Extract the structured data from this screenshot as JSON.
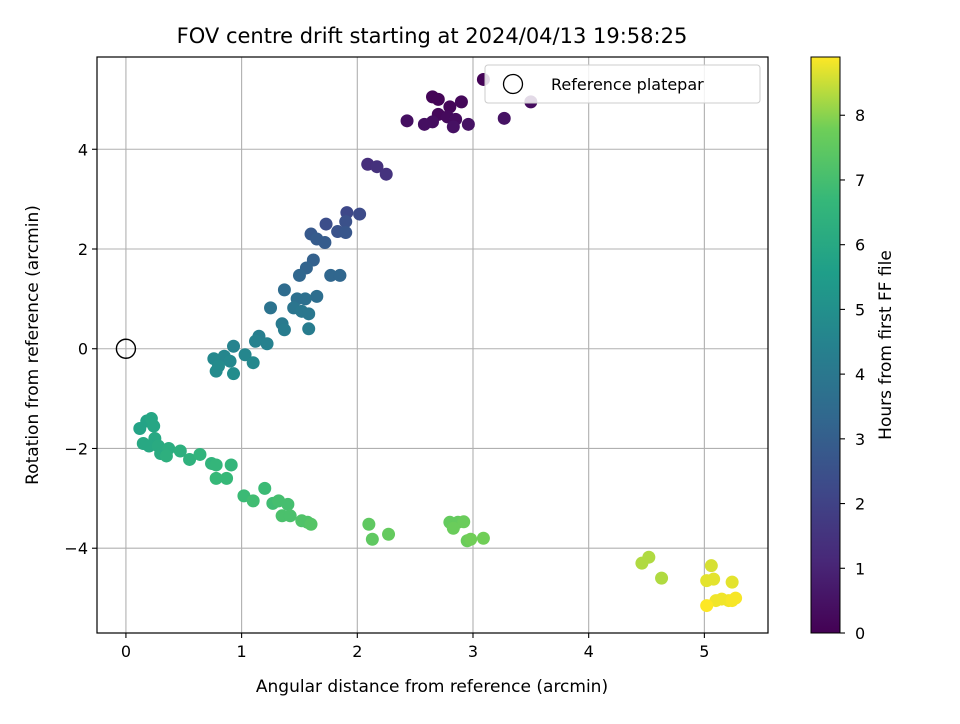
{
  "chart_data": {
    "type": "scatter",
    "title": "FOV centre drift starting at 2024/04/13 19:58:25",
    "xlabel": "Angular distance from reference (arcmin)",
    "ylabel": "Rotation from reference (arcmin)",
    "xlim": [
      -0.25,
      5.55
    ],
    "ylim": [
      -5.7,
      5.85
    ],
    "xticks": [
      0,
      1,
      2,
      3,
      4,
      5
    ],
    "yticks": [
      -4,
      -2,
      0,
      2,
      4
    ],
    "grid": true,
    "legend": {
      "placement": "top-right",
      "entries": [
        "Reference platepar"
      ]
    },
    "reference_point": {
      "x": 0,
      "y": 0
    },
    "colorbar": {
      "label": "Hours from first FF file",
      "colormap": "viridis",
      "range": [
        0,
        8.9
      ],
      "ticks": [
        0,
        1,
        2,
        3,
        4,
        5,
        6,
        7,
        8
      ]
    },
    "points": [
      {
        "x": 3.09,
        "y": 5.4,
        "c": 0.05
      },
      {
        "x": 2.65,
        "y": 5.05,
        "c": 0.1
      },
      {
        "x": 2.7,
        "y": 5.0,
        "c": 0.1
      },
      {
        "x": 2.8,
        "y": 4.85,
        "c": 0.15
      },
      {
        "x": 2.9,
        "y": 4.95,
        "c": 0.2
      },
      {
        "x": 3.5,
        "y": 4.95,
        "c": 0.3
      },
      {
        "x": 2.7,
        "y": 4.7,
        "c": 0.2
      },
      {
        "x": 2.78,
        "y": 4.65,
        "c": 0.25
      },
      {
        "x": 2.85,
        "y": 4.6,
        "c": 0.3
      },
      {
        "x": 2.65,
        "y": 4.55,
        "c": 0.35
      },
      {
        "x": 2.43,
        "y": 4.57,
        "c": 0.4
      },
      {
        "x": 2.58,
        "y": 4.5,
        "c": 0.4
      },
      {
        "x": 2.83,
        "y": 4.45,
        "c": 0.45
      },
      {
        "x": 2.96,
        "y": 4.5,
        "c": 0.5
      },
      {
        "x": 3.27,
        "y": 4.62,
        "c": 0.5
      },
      {
        "x": 2.09,
        "y": 3.7,
        "c": 1.3
      },
      {
        "x": 2.17,
        "y": 3.65,
        "c": 1.4
      },
      {
        "x": 2.25,
        "y": 3.5,
        "c": 1.5
      },
      {
        "x": 1.91,
        "y": 2.73,
        "c": 2.2
      },
      {
        "x": 2.02,
        "y": 2.7,
        "c": 2.3
      },
      {
        "x": 1.73,
        "y": 2.5,
        "c": 2.4
      },
      {
        "x": 1.9,
        "y": 2.55,
        "c": 2.5
      },
      {
        "x": 1.83,
        "y": 2.35,
        "c": 2.6
      },
      {
        "x": 1.9,
        "y": 2.33,
        "c": 2.7
      },
      {
        "x": 1.6,
        "y": 2.3,
        "c": 2.8
      },
      {
        "x": 1.65,
        "y": 2.2,
        "c": 2.9
      },
      {
        "x": 1.72,
        "y": 2.13,
        "c": 2.9
      },
      {
        "x": 1.62,
        "y": 1.78,
        "c": 3.1
      },
      {
        "x": 1.56,
        "y": 1.62,
        "c": 3.2
      },
      {
        "x": 1.5,
        "y": 1.47,
        "c": 3.3
      },
      {
        "x": 1.77,
        "y": 1.47,
        "c": 3.3
      },
      {
        "x": 1.85,
        "y": 1.47,
        "c": 3.3
      },
      {
        "x": 1.37,
        "y": 1.18,
        "c": 3.5
      },
      {
        "x": 1.65,
        "y": 1.05,
        "c": 3.6
      },
      {
        "x": 1.48,
        "y": 1.0,
        "c": 3.7
      },
      {
        "x": 1.55,
        "y": 1.0,
        "c": 3.7
      },
      {
        "x": 1.25,
        "y": 0.82,
        "c": 3.8
      },
      {
        "x": 1.45,
        "y": 0.82,
        "c": 3.9
      },
      {
        "x": 1.52,
        "y": 0.75,
        "c": 4.0
      },
      {
        "x": 1.58,
        "y": 0.7,
        "c": 4.0
      },
      {
        "x": 1.35,
        "y": 0.5,
        "c": 4.1
      },
      {
        "x": 1.58,
        "y": 0.4,
        "c": 4.2
      },
      {
        "x": 1.37,
        "y": 0.38,
        "c": 4.2
      },
      {
        "x": 1.15,
        "y": 0.25,
        "c": 4.3
      },
      {
        "x": 1.12,
        "y": 0.15,
        "c": 4.4
      },
      {
        "x": 1.22,
        "y": 0.1,
        "c": 4.4
      },
      {
        "x": 0.93,
        "y": 0.05,
        "c": 4.5
      },
      {
        "x": 1.03,
        "y": -0.12,
        "c": 4.6
      },
      {
        "x": 0.85,
        "y": -0.15,
        "c": 4.6
      },
      {
        "x": 0.76,
        "y": -0.2,
        "c": 4.7
      },
      {
        "x": 0.9,
        "y": -0.25,
        "c": 4.7
      },
      {
        "x": 1.1,
        "y": -0.28,
        "c": 4.7
      },
      {
        "x": 0.8,
        "y": -0.35,
        "c": 4.8
      },
      {
        "x": 0.78,
        "y": -0.45,
        "c": 4.8
      },
      {
        "x": 0.93,
        "y": -0.5,
        "c": 4.9
      },
      {
        "x": 0.12,
        "y": -1.6,
        "c": 5.8
      },
      {
        "x": 0.18,
        "y": -1.45,
        "c": 5.8
      },
      {
        "x": 0.22,
        "y": -1.4,
        "c": 5.9
      },
      {
        "x": 0.24,
        "y": -1.55,
        "c": 5.9
      },
      {
        "x": 0.25,
        "y": -1.8,
        "c": 6.0
      },
      {
        "x": 0.15,
        "y": -1.9,
        "c": 6.0
      },
      {
        "x": 0.2,
        "y": -1.95,
        "c": 6.0
      },
      {
        "x": 0.28,
        "y": -1.95,
        "c": 6.1
      },
      {
        "x": 0.3,
        "y": -2.1,
        "c": 6.1
      },
      {
        "x": 0.37,
        "y": -2.0,
        "c": 6.2
      },
      {
        "x": 0.47,
        "y": -2.05,
        "c": 6.3
      },
      {
        "x": 0.35,
        "y": -2.15,
        "c": 6.3
      },
      {
        "x": 0.55,
        "y": -2.22,
        "c": 6.4
      },
      {
        "x": 0.64,
        "y": -2.12,
        "c": 6.5
      },
      {
        "x": 0.74,
        "y": -2.3,
        "c": 6.5
      },
      {
        "x": 0.78,
        "y": -2.33,
        "c": 6.6
      },
      {
        "x": 0.91,
        "y": -2.33,
        "c": 6.6
      },
      {
        "x": 0.78,
        "y": -2.6,
        "c": 6.7
      },
      {
        "x": 0.87,
        "y": -2.6,
        "c": 6.7
      },
      {
        "x": 1.2,
        "y": -2.8,
        "c": 6.8
      },
      {
        "x": 1.02,
        "y": -2.95,
        "c": 6.8
      },
      {
        "x": 1.1,
        "y": -3.05,
        "c": 6.9
      },
      {
        "x": 1.27,
        "y": -3.1,
        "c": 6.9
      },
      {
        "x": 1.32,
        "y": -3.05,
        "c": 7.0
      },
      {
        "x": 1.4,
        "y": -3.12,
        "c": 7.0
      },
      {
        "x": 1.35,
        "y": -3.35,
        "c": 7.1
      },
      {
        "x": 1.42,
        "y": -3.35,
        "c": 7.1
      },
      {
        "x": 1.52,
        "y": -3.45,
        "c": 7.2
      },
      {
        "x": 1.57,
        "y": -3.48,
        "c": 7.2
      },
      {
        "x": 1.6,
        "y": -3.52,
        "c": 7.3
      },
      {
        "x": 2.1,
        "y": -3.52,
        "c": 7.5
      },
      {
        "x": 2.13,
        "y": -3.82,
        "c": 7.5
      },
      {
        "x": 2.27,
        "y": -3.72,
        "c": 7.6
      },
      {
        "x": 2.8,
        "y": -3.48,
        "c": 7.6
      },
      {
        "x": 2.87,
        "y": -3.48,
        "c": 7.6
      },
      {
        "x": 2.92,
        "y": -3.47,
        "c": 7.7
      },
      {
        "x": 2.83,
        "y": -3.6,
        "c": 7.7
      },
      {
        "x": 2.95,
        "y": -3.85,
        "c": 7.7
      },
      {
        "x": 2.98,
        "y": -3.82,
        "c": 7.8
      },
      {
        "x": 3.09,
        "y": -3.8,
        "c": 7.8
      },
      {
        "x": 4.52,
        "y": -4.18,
        "c": 8.3
      },
      {
        "x": 4.46,
        "y": -4.3,
        "c": 8.3
      },
      {
        "x": 4.63,
        "y": -4.6,
        "c": 8.3
      },
      {
        "x": 5.06,
        "y": -4.35,
        "c": 8.6
      },
      {
        "x": 5.02,
        "y": -4.65,
        "c": 8.7
      },
      {
        "x": 5.08,
        "y": -4.62,
        "c": 8.7
      },
      {
        "x": 5.24,
        "y": -4.68,
        "c": 8.7
      },
      {
        "x": 5.1,
        "y": -5.05,
        "c": 8.8
      },
      {
        "x": 5.15,
        "y": -5.02,
        "c": 8.8
      },
      {
        "x": 5.21,
        "y": -5.05,
        "c": 8.8
      },
      {
        "x": 5.24,
        "y": -5.05,
        "c": 8.85
      },
      {
        "x": 5.27,
        "y": -5.0,
        "c": 8.85
      },
      {
        "x": 5.02,
        "y": -5.15,
        "c": 8.9
      }
    ]
  }
}
